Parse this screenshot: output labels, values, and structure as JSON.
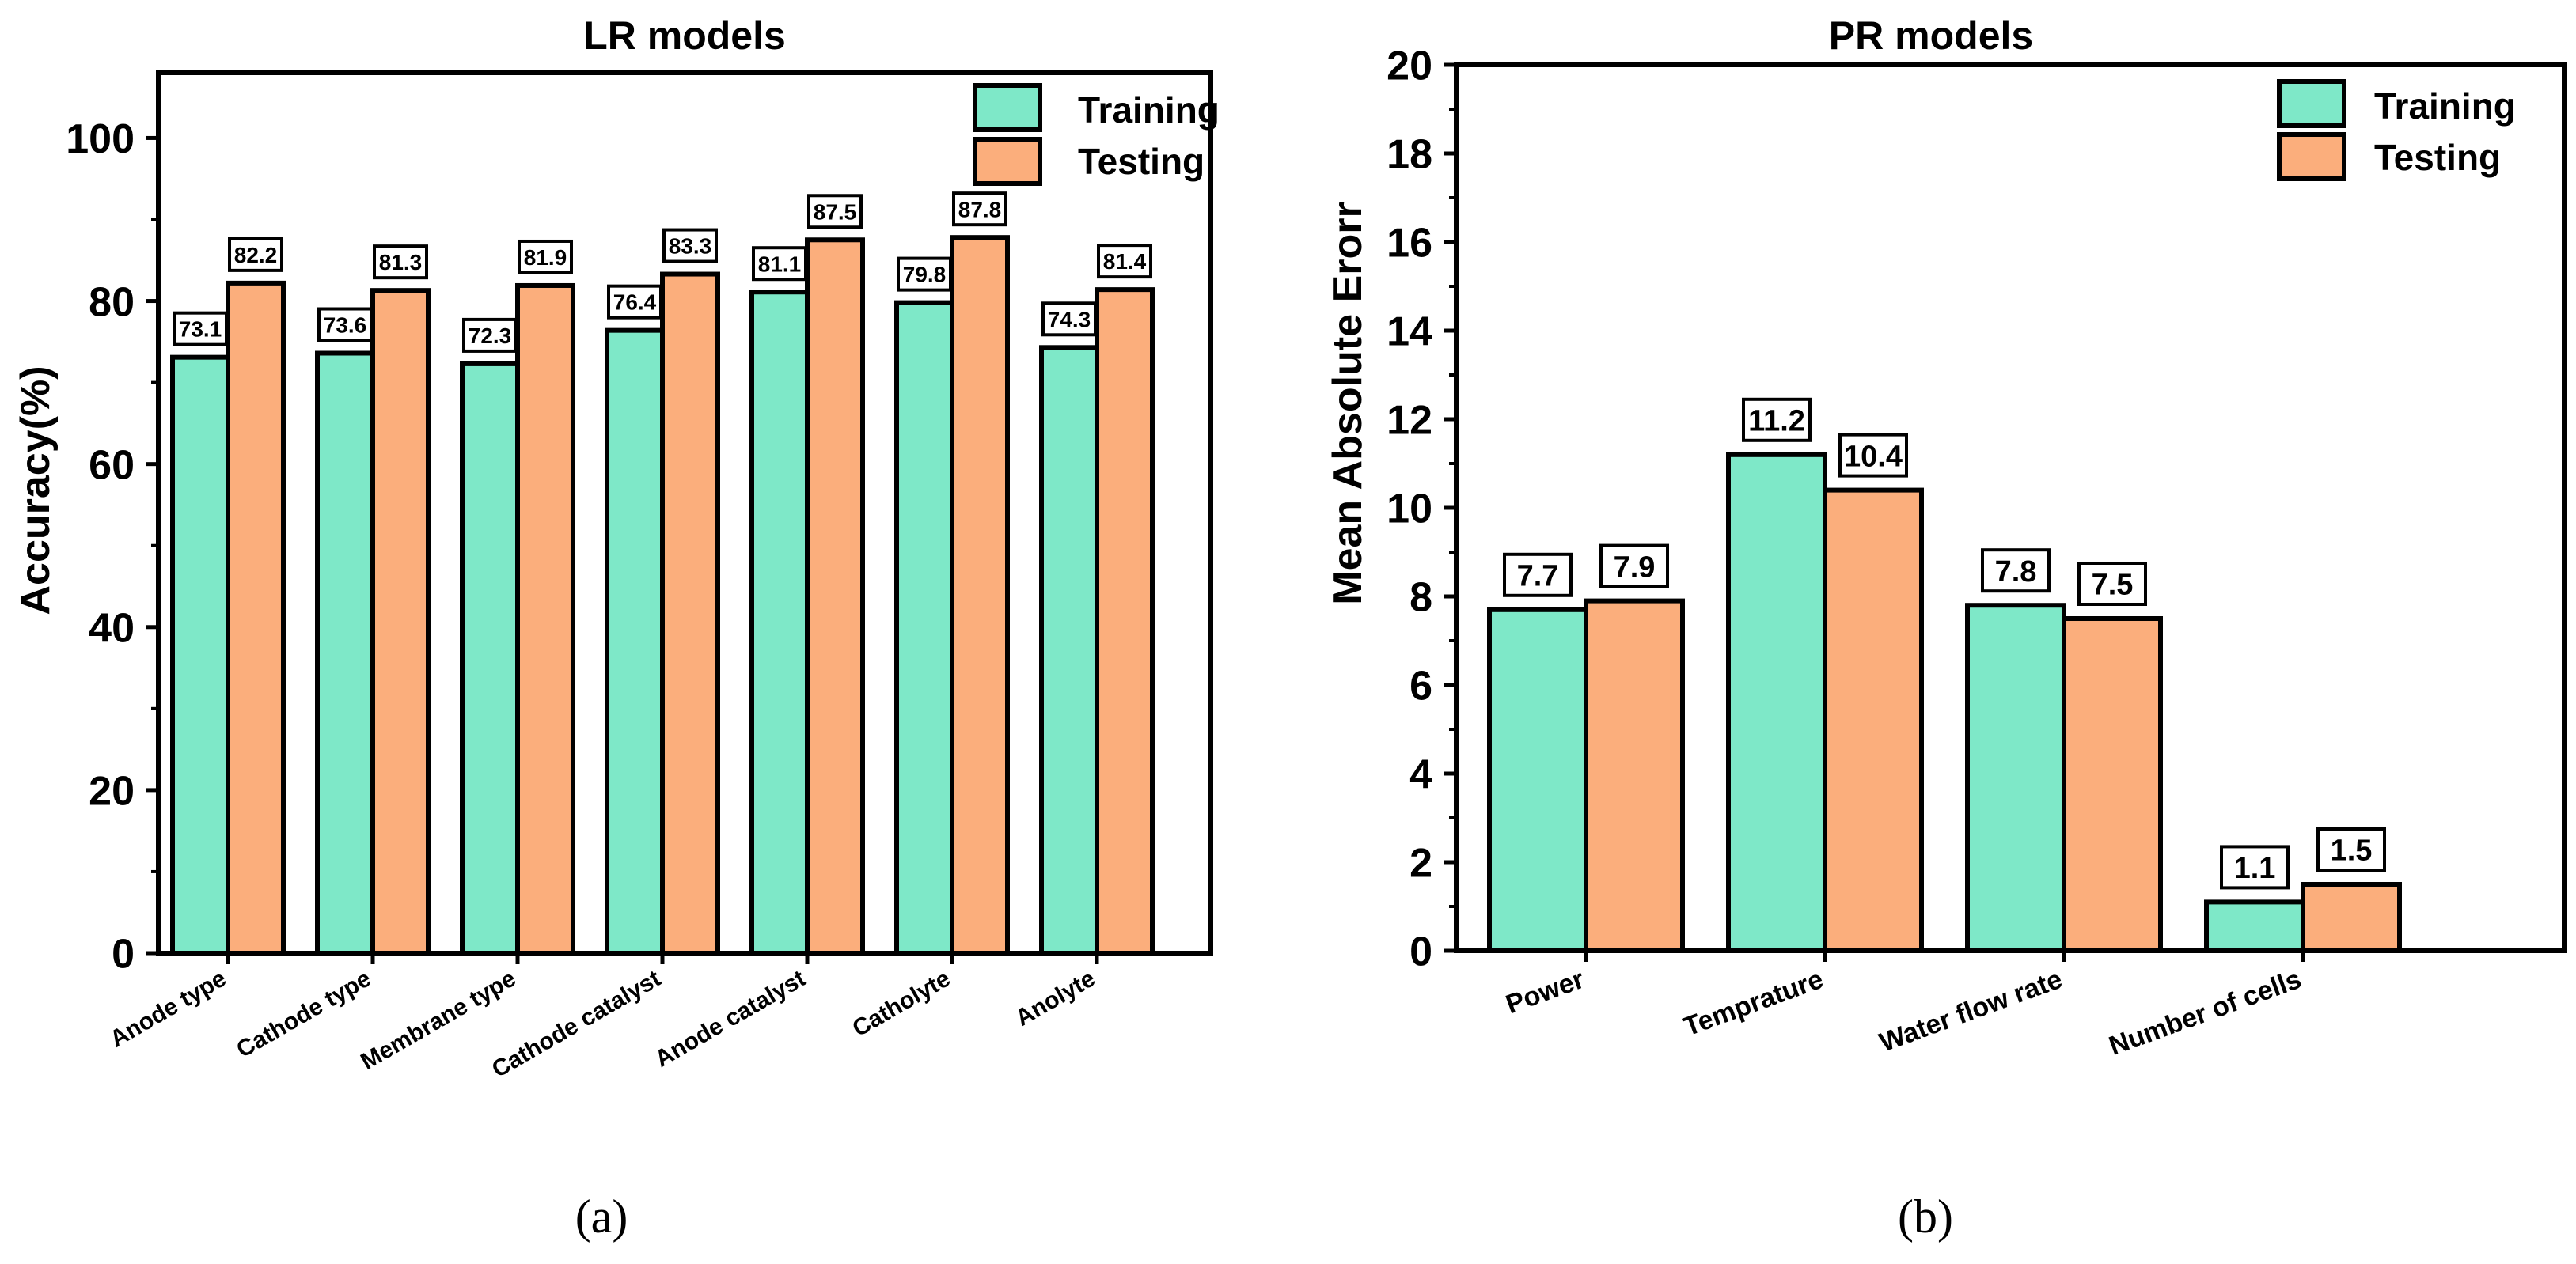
{
  "colors": {
    "training": "#7EE8C8",
    "testing": "#FBAE7C",
    "stroke": "#000000"
  },
  "chart_data": [
    {
      "type": "bar",
      "title": "LR models",
      "ylabel": "Accuracy(%)",
      "xlabel": "",
      "ylim": [
        0,
        108
      ],
      "yticks": [
        0,
        20,
        40,
        60,
        80,
        100
      ],
      "ytick_labels": [
        "0",
        "20",
        "40",
        "60",
        "80",
        "100"
      ],
      "categories": [
        "Anode type",
        "Cathode type",
        "Membrane type",
        "Cathode catalyst",
        "Anode catalyst",
        "Catholyte",
        "Anolyte"
      ],
      "series": [
        {
          "name": "Training",
          "values": [
            73.1,
            73.6,
            72.3,
            76.4,
            81.1,
            79.8,
            74.3
          ],
          "labels": [
            "73.1",
            "73.6",
            "72.3",
            "76.4",
            "81.1",
            "79.8",
            "74.3"
          ]
        },
        {
          "name": "Testing",
          "values": [
            82.2,
            81.3,
            81.9,
            83.3,
            87.5,
            87.8,
            81.4
          ],
          "labels": [
            "82.2",
            "81.3",
            "81.9",
            "83.3",
            "87.5",
            "87.8",
            "81.4"
          ]
        }
      ],
      "legend": "top-right",
      "caption": "(a)"
    },
    {
      "type": "bar",
      "title": "PR models",
      "ylabel": "Mean Absolute Erorr",
      "xlabel": "",
      "ylim": [
        0,
        20
      ],
      "yticks": [
        0,
        2,
        4,
        6,
        8,
        10,
        12,
        14,
        16,
        18,
        20
      ],
      "ytick_labels": [
        "0",
        "2",
        "4",
        "6",
        "8",
        "10",
        "12",
        "14",
        "16",
        "18",
        "20"
      ],
      "categories": [
        "Power",
        "Temprature",
        "Water flow rate",
        "Number of cells"
      ],
      "series": [
        {
          "name": "Training",
          "values": [
            7.7,
            11.2,
            7.8,
            1.1
          ],
          "labels": [
            "7.7",
            "11.2",
            "7.8",
            "1.1"
          ]
        },
        {
          "name": "Testing",
          "values": [
            7.9,
            10.4,
            7.5,
            1.5
          ],
          "labels": [
            "7.9",
            "10.4",
            "7.5",
            "1.5"
          ]
        }
      ],
      "legend": "top-right",
      "caption": "(b)"
    }
  ]
}
